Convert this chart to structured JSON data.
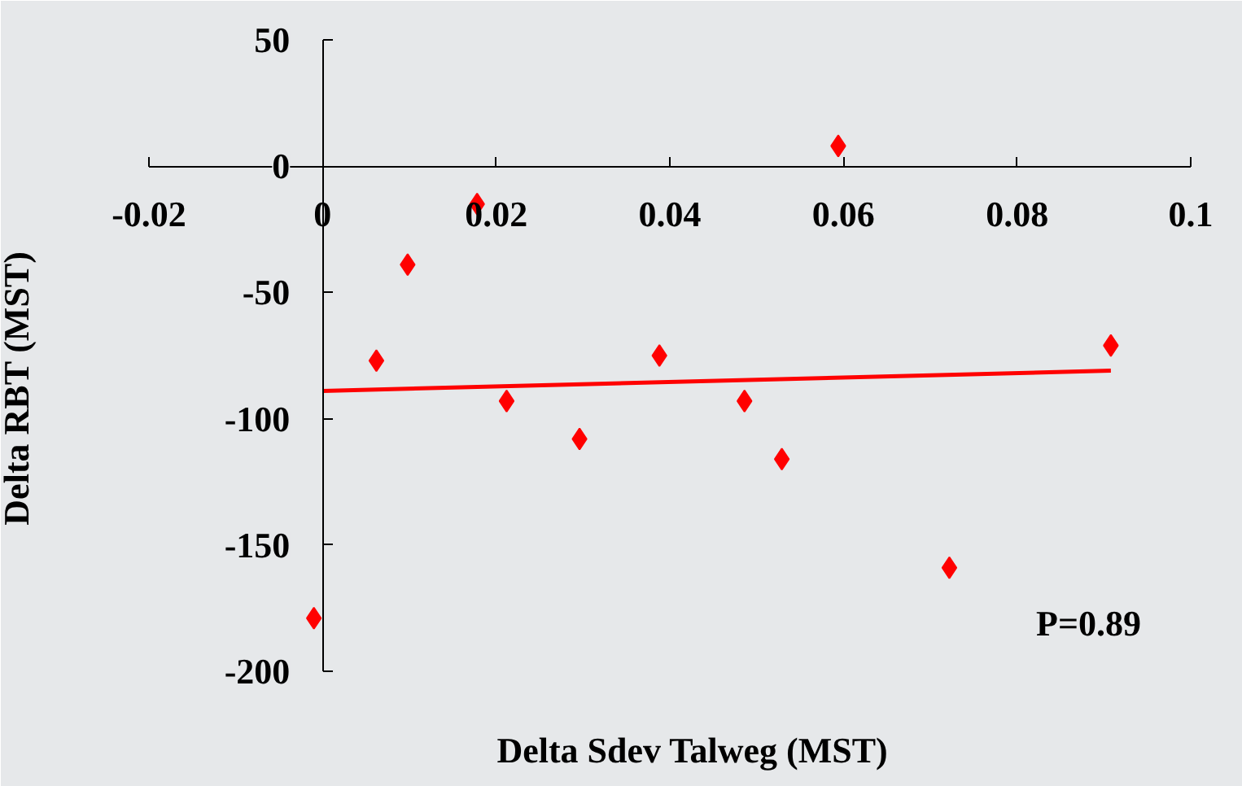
{
  "chart_data": {
    "type": "scatter",
    "xlabel": "Delta Sdev Talweg (MST)",
    "ylabel": "Delta RBT (MST)",
    "xlim": [
      -0.02,
      0.1
    ],
    "ylim": [
      -200,
      50
    ],
    "xticks": [
      -0.02,
      0,
      0.02,
      0.04,
      0.06,
      0.08,
      0.1
    ],
    "yticks": [
      -200,
      -150,
      -100,
      -50,
      0,
      50
    ],
    "marker": "diamond",
    "series": [
      {
        "color": "#ff0000",
        "x": [
          -0.001,
          0.0062,
          0.0098,
          0.0178,
          0.0212,
          0.0296,
          0.0388,
          0.0486,
          0.0529,
          0.0594,
          0.0722,
          0.0908
        ],
        "values": [
          -179,
          -77,
          -39,
          -15,
          -93,
          -108,
          -75,
          -93,
          -116,
          8,
          -159,
          -71
        ]
      },
      {
        "type": "line",
        "color": "#ff0000",
        "x": [
          0,
          0.0908
        ],
        "values": [
          -89,
          -81
        ],
        "marker": "none",
        "line_style": "solid"
      }
    ],
    "annotations": [
      "P=0.89"
    ]
  }
}
